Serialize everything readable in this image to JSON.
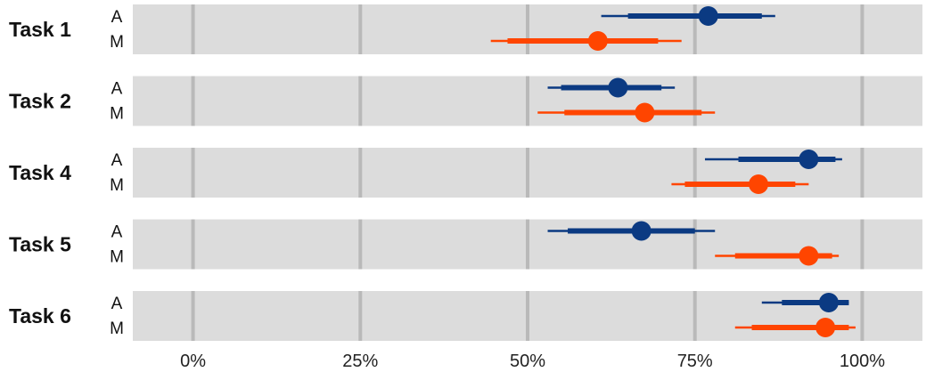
{
  "chart_data": {
    "type": "forest-interval",
    "x": {
      "min": -0.09,
      "max": 1.09,
      "ticks": [
        0,
        0.25,
        0.5,
        0.75,
        1.0
      ],
      "tick_labels": [
        "0%",
        "25%",
        "50%",
        "75%",
        "100%"
      ]
    },
    "series": [
      {
        "key": "A",
        "color": "#0b3a82"
      },
      {
        "key": "M",
        "color": "#ff4500"
      }
    ],
    "tasks": [
      {
        "label": "Task 1",
        "rows": [
          {
            "series": "A",
            "label": "A",
            "point": 0.77,
            "inner": [
              0.65,
              0.85
            ],
            "outer": [
              0.61,
              0.87
            ]
          },
          {
            "series": "M",
            "label": "M",
            "point": 0.605,
            "inner": [
              0.47,
              0.695
            ],
            "outer": [
              0.445,
              0.73
            ]
          }
        ]
      },
      {
        "label": "Task 2",
        "rows": [
          {
            "series": "A",
            "label": "A",
            "point": 0.635,
            "inner": [
              0.55,
              0.7
            ],
            "outer": [
              0.53,
              0.72
            ]
          },
          {
            "series": "M",
            "label": "M",
            "point": 0.675,
            "inner": [
              0.555,
              0.76
            ],
            "outer": [
              0.515,
              0.78
            ]
          }
        ]
      },
      {
        "label": "Task 4",
        "rows": [
          {
            "series": "A",
            "label": "A",
            "point": 0.92,
            "inner": [
              0.815,
              0.96
            ],
            "outer": [
              0.765,
              0.97
            ]
          },
          {
            "series": "M",
            "label": "M",
            "point": 0.845,
            "inner": [
              0.735,
              0.9
            ],
            "outer": [
              0.715,
              0.92
            ]
          }
        ]
      },
      {
        "label": "Task 5",
        "rows": [
          {
            "series": "A",
            "label": "A",
            "point": 0.67,
            "inner": [
              0.56,
              0.75
            ],
            "outer": [
              0.53,
              0.78
            ]
          },
          {
            "series": "M",
            "label": "M",
            "point": 0.92,
            "inner": [
              0.81,
              0.955
            ],
            "outer": [
              0.78,
              0.965
            ]
          }
        ]
      },
      {
        "label": "Task 6",
        "rows": [
          {
            "series": "A",
            "label": "A",
            "point": 0.95,
            "inner": [
              0.88,
              0.98
            ],
            "outer": [
              0.85,
              0.98
            ]
          },
          {
            "series": "M",
            "label": "M",
            "point": 0.945,
            "inner": [
              0.835,
              0.98
            ],
            "outer": [
              0.81,
              0.99
            ]
          }
        ]
      }
    ],
    "grid": true,
    "legend": "none"
  }
}
